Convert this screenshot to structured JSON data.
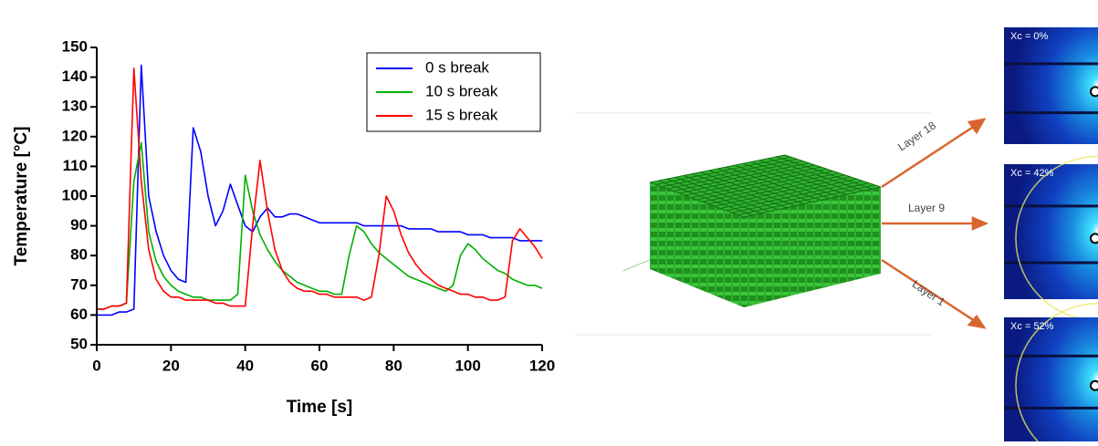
{
  "chart_data": {
    "type": "line",
    "xlabel": "Time [s]",
    "ylabel": "Temperature [°C]",
    "x": [
      0,
      2,
      4,
      6,
      8,
      10,
      12,
      14,
      16,
      18,
      20,
      22,
      24,
      26,
      28,
      30,
      32,
      34,
      36,
      38,
      40,
      42,
      44,
      46,
      48,
      50,
      52,
      54,
      56,
      58,
      60,
      62,
      64,
      66,
      68,
      70,
      72,
      74,
      76,
      78,
      80,
      82,
      84,
      86,
      88,
      90,
      92,
      94,
      96,
      98,
      100,
      102,
      104,
      106,
      108,
      110,
      112,
      114,
      116,
      118,
      120
    ],
    "series": [
      {
        "name": "0 s break",
        "color": "#0000ff",
        "values": [
          60,
          60,
          60,
          61,
          61,
          62,
          144,
          100,
          88,
          80,
          75,
          72,
          71,
          123,
          115,
          100,
          90,
          95,
          104,
          97,
          90,
          88,
          93,
          96,
          93,
          93,
          94,
          94,
          93,
          92,
          91,
          91,
          91,
          91,
          91,
          91,
          90,
          90,
          90,
          90,
          90,
          90,
          89,
          89,
          89,
          89,
          88,
          88,
          88,
          88,
          87,
          87,
          87,
          86,
          86,
          86,
          86,
          85,
          85,
          85,
          85
        ]
      },
      {
        "name": "10 s break",
        "color": "#00b000",
        "values": [
          62,
          62,
          63,
          63,
          64,
          105,
          118,
          88,
          78,
          73,
          70,
          68,
          67,
          66,
          66,
          65,
          65,
          65,
          65,
          67,
          107,
          95,
          87,
          82,
          78,
          75,
          73,
          71,
          70,
          69,
          68,
          68,
          67,
          67,
          80,
          90,
          88,
          84,
          81,
          79,
          77,
          75,
          73,
          72,
          71,
          70,
          69,
          68,
          70,
          80,
          84,
          82,
          79,
          77,
          75,
          74,
          72,
          71,
          70,
          70,
          69
        ]
      },
      {
        "name": "15 s break",
        "color": "#ff0000",
        "values": [
          62,
          62,
          63,
          63,
          64,
          143,
          105,
          82,
          72,
          68,
          66,
          66,
          65,
          65,
          65,
          65,
          64,
          64,
          63,
          63,
          63,
          90,
          112,
          95,
          82,
          75,
          71,
          69,
          68,
          68,
          67,
          67,
          66,
          66,
          66,
          66,
          65,
          66,
          80,
          100,
          95,
          87,
          81,
          77,
          74,
          72,
          70,
          69,
          68,
          67,
          67,
          66,
          66,
          65,
          65,
          66,
          85,
          89,
          86,
          83,
          79
        ]
      }
    ],
    "xlim": [
      0,
      120
    ],
    "xticks": [
      0,
      20,
      40,
      60,
      80,
      100,
      120
    ],
    "ylim": [
      50,
      150
    ],
    "yticks": [
      50,
      60,
      70,
      80,
      90,
      100,
      110,
      120,
      130,
      140,
      150
    ],
    "legend": "upper right"
  },
  "diagram": {
    "arrows": [
      "Layer 18",
      "Layer 9",
      "Layer 1"
    ],
    "panels": [
      "Xc = 0%",
      "Xc = 42%",
      "Xc = 52%"
    ]
  }
}
